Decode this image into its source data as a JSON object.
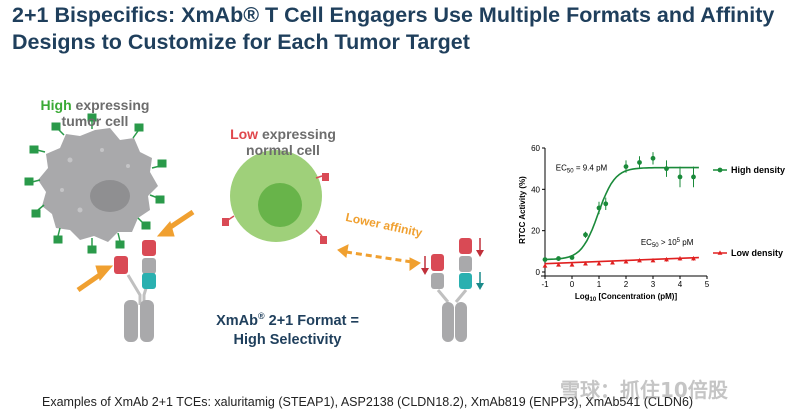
{
  "slide": {
    "title": "2+1 Bispecifics: XmAb® T Cell Engagers Use Multiple Formats and Affinity Designs to Customize for Each Tumor Target",
    "high_cell": {
      "high_word": "High",
      "rest1": " expressing",
      "line2": "tumor cell"
    },
    "low_cell": {
      "low_word": "Low",
      "rest1": " expressing",
      "line2": "normal cell"
    },
    "lower_affinity": "Lower affinity",
    "format_line1_a": "XmAb",
    "format_line1_sup": "®",
    "format_line1_b": " 2+1 Format =",
    "format_line2": "High Selectivity",
    "footer": "Examples of XmAb 2+1 TCEs: xaluritamig (STEAP1), ASP2138 (CLDN18.2), XmAb819 (ENPP3), XmAb541 (CLDN6)",
    "watermark": "雪球：抓住10倍股"
  },
  "colors": {
    "title": "#1f3f5c",
    "high_green": "#3aaa35",
    "low_red": "#e0474c",
    "arrow_orange": "#f0a030",
    "antigen_green": "#2a9a4a",
    "antigen_red": "#d94a55",
    "fab_teal": "#2ab0b0",
    "cell_gray": "#a9a9ab"
  },
  "chart_data": {
    "type": "scatter",
    "xlabel": "Log10 [Concentration (pM)]",
    "ylabel": "RTCC Activity (%)",
    "xlim": [
      -1,
      5
    ],
    "ylim": [
      0,
      60
    ],
    "xticks": [
      "-1",
      "0",
      "1",
      "2",
      "3",
      "4",
      "5"
    ],
    "yticks": [
      "0",
      "20",
      "40",
      "60"
    ],
    "series": [
      {
        "name": "High density",
        "color": "#1a8a3a",
        "x": [
          -1,
          -0.5,
          0,
          0.5,
          1,
          1.25,
          2,
          2.5,
          3,
          3.5,
          4,
          4.5
        ],
        "y": [
          6,
          6.5,
          7,
          18,
          31,
          33,
          51,
          53,
          55,
          50,
          46,
          46
        ],
        "err": [
          1,
          1,
          1,
          1.5,
          3,
          3,
          3,
          3,
          3,
          4,
          5,
          5
        ],
        "annotation": "EC50 = 9.4 pM"
      },
      {
        "name": "Low density",
        "color": "#e02020",
        "x": [
          -1,
          -0.5,
          0,
          0.5,
          1,
          1.5,
          2,
          2.5,
          3,
          3.5,
          4,
          4.5
        ],
        "y": [
          3,
          3.5,
          3.5,
          4,
          4,
          4.5,
          5,
          5.5,
          5.5,
          6,
          6.5,
          6.5
        ],
        "err": [
          0.5,
          0.5,
          0.5,
          0.5,
          0.5,
          0.5,
          0.5,
          0.5,
          0.5,
          1,
          1,
          1
        ],
        "annotation": "EC50 > 10^5 pM"
      }
    ]
  }
}
